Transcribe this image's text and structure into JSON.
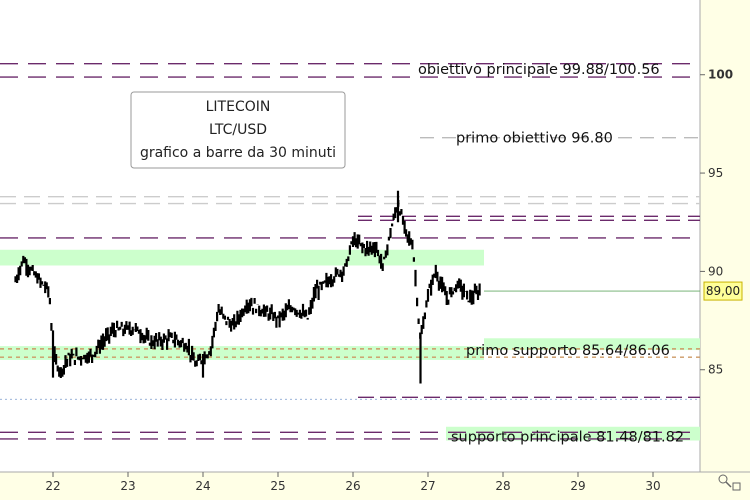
{
  "chart_data": {
    "type": "bar",
    "title_box": [
      "LITECOIN",
      "LTC/USD",
      "grafico a barre da 30 minuti"
    ],
    "x_ticks": [
      "22",
      "23",
      "24",
      "25",
      "26",
      "27",
      "28",
      "29",
      "30"
    ],
    "y_ticks": [
      85,
      90,
      95,
      100
    ],
    "ylim": [
      79.8,
      103.8
    ],
    "last_price_label": "89,00",
    "last_price": 89.0,
    "zones": [
      {
        "from": 90.3,
        "to": 91.1
      },
      {
        "from": 85.5,
        "to": 86.2
      },
      {
        "from": 86.0,
        "to": 86.6
      },
      {
        "from": 81.4,
        "to": 82.1
      }
    ],
    "annotations": [
      {
        "text": "obiettivo principale 99.88/100.56",
        "y": 100.3
      },
      {
        "text": "primo obiettivo 96.80",
        "y": 96.8
      },
      {
        "text": "primo supporto 85.64/86.06",
        "y": 86.0
      },
      {
        "text": "supporto principale 81.48/81.82",
        "y": 81.6
      }
    ],
    "levels": [
      100.56,
      99.88,
      96.8,
      93.8,
      93.45,
      92.8,
      92.6,
      91.7,
      86.06,
      85.64,
      83.6,
      81.82,
      81.48
    ],
    "price_path_approx": [
      [
        21.5,
        89.5
      ],
      [
        21.6,
        90.6
      ],
      [
        21.8,
        89.6
      ],
      [
        21.95,
        89.0
      ],
      [
        22.0,
        85.8
      ],
      [
        22.1,
        84.9
      ],
      [
        22.2,
        85.6
      ],
      [
        22.5,
        85.7
      ],
      [
        22.8,
        87.0
      ],
      [
        23.1,
        87.1
      ],
      [
        23.3,
        86.4
      ],
      [
        23.6,
        86.6
      ],
      [
        23.8,
        86.2
      ],
      [
        23.9,
        85.2
      ],
      [
        24.1,
        86.0
      ],
      [
        24.2,
        88.0
      ],
      [
        24.4,
        87.2
      ],
      [
        24.6,
        88.4
      ],
      [
        24.8,
        88.0
      ],
      [
        25.0,
        87.6
      ],
      [
        25.2,
        88.2
      ],
      [
        25.4,
        87.6
      ],
      [
        25.5,
        89.0
      ],
      [
        25.7,
        89.6
      ],
      [
        25.9,
        90.2
      ],
      [
        26.0,
        91.6
      ],
      [
        26.2,
        91.1
      ],
      [
        26.3,
        91.3
      ],
      [
        26.4,
        90.2
      ],
      [
        26.5,
        92.0
      ],
      [
        26.6,
        93.5
      ],
      [
        26.7,
        92.0
      ],
      [
        26.8,
        91.3
      ],
      [
        26.9,
        86.4
      ],
      [
        27.0,
        88.8
      ],
      [
        27.1,
        90.0
      ],
      [
        27.25,
        88.6
      ],
      [
        27.4,
        89.4
      ],
      [
        27.55,
        88.6
      ],
      [
        27.7,
        89.0
      ]
    ]
  }
}
